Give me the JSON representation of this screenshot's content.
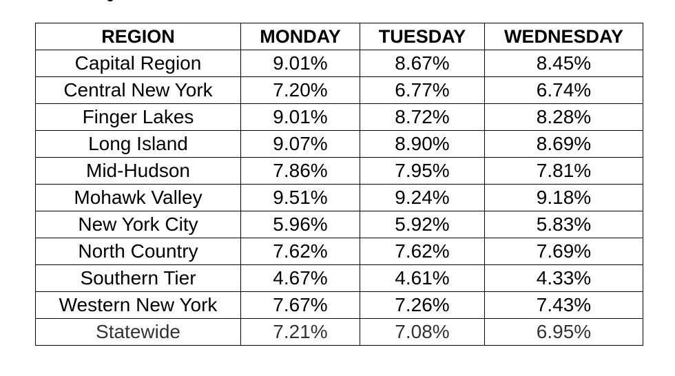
{
  "table": {
    "headers": [
      "REGION",
      "MONDAY",
      "TUESDAY",
      "WEDNESDAY"
    ],
    "rows": [
      [
        "Capital Region",
        "9.01%",
        "8.67%",
        "8.45%"
      ],
      [
        "Central New York",
        "7.20%",
        "6.77%",
        "6.74%"
      ],
      [
        "Finger Lakes",
        "9.01%",
        "8.72%",
        "8.28%"
      ],
      [
        "Long Island",
        "9.07%",
        "8.90%",
        "8.69%"
      ],
      [
        "Mid-Hudson",
        "7.86%",
        "7.95%",
        "7.81%"
      ],
      [
        "Mohawk Valley",
        "9.51%",
        "9.24%",
        "9.18%"
      ],
      [
        "New York City",
        "5.96%",
        "5.92%",
        "5.83%"
      ],
      [
        "North Country",
        "7.62%",
        "7.62%",
        "7.69%"
      ],
      [
        "Southern Tier",
        "4.67%",
        "4.61%",
        "4.33%"
      ],
      [
        "Western New York",
        "7.67%",
        "7.26%",
        "7.43%"
      ],
      [
        "Statewide",
        "7.21%",
        "7.08%",
        "6.95%"
      ]
    ]
  },
  "colors": {
    "text": "#000000",
    "border": "#000000",
    "background": "#ffffff"
  }
}
